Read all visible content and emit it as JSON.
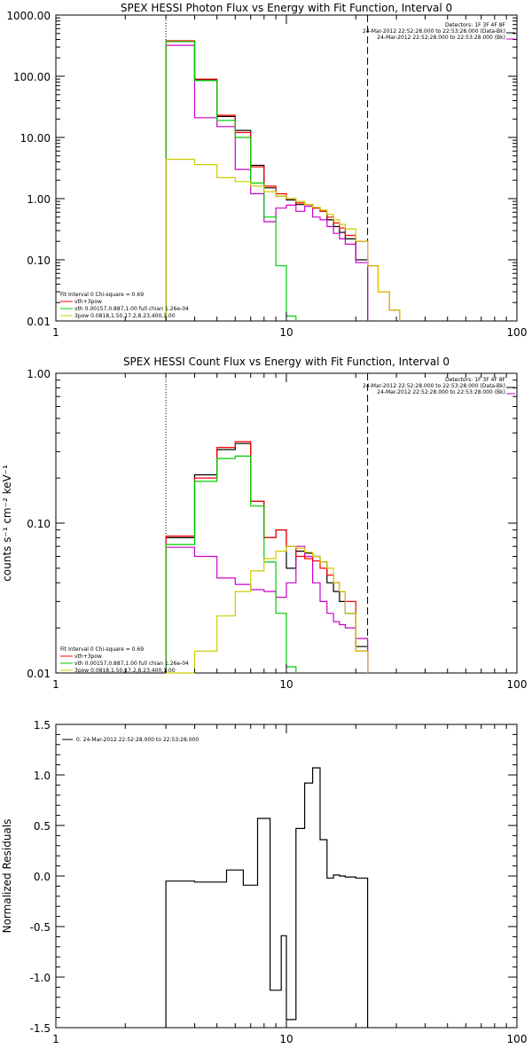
{
  "chart_data": [
    {
      "type": "line",
      "title": "SPEX HESSI Photon Flux vs Energy with Fit Function, Interval 0",
      "xscale": "log",
      "yscale": "log",
      "xlim": [
        1,
        100
      ],
      "ylim": [
        0.01,
        1000
      ],
      "x_ticks": [
        "1",
        "10",
        "100"
      ],
      "y_ticks": [
        "0.01",
        "0.10",
        "1.00",
        "10.00",
        "100.00",
        "1000.00"
      ],
      "ylabel": "",
      "info_lines": [
        "Detectors: 1F 3F 4F 8F",
        "24-Mar-2012 22:52:28.000 to 22:53:28.000 (Data-Bk)",
        "24-Mar-2012 22:52:28.000 to 22:53:28.000 (Bk)"
      ],
      "fit_lines": [
        "Fit Interval 0   Chi-square = 0.69",
        "vth+3pow",
        "vth 0.00157,0.887,1.00  full chian 1.26e-04",
        "3pow 0.0818,1.50,17.2,8.23,400,1.00"
      ],
      "vlines": [
        3.0,
        22.5
      ],
      "bin_edges": [
        3,
        4,
        5,
        6,
        7,
        8,
        9,
        10,
        11,
        12,
        13,
        14,
        15,
        16,
        17,
        18,
        20,
        22.5,
        25,
        28,
        31
      ],
      "series": [
        {
          "name": "Data-Bk",
          "color": "#000000",
          "values": [
            370,
            88,
            22,
            13,
            3.5,
            1.5,
            1.1,
            0.95,
            0.8,
            0.8,
            0.7,
            0.62,
            0.45,
            0.35,
            0.28,
            0.22,
            0.1,
            null,
            null,
            null
          ]
        },
        {
          "name": "Bk",
          "color": "#cc00cc",
          "values": [
            320,
            21,
            15,
            3.0,
            1.2,
            0.42,
            0.7,
            0.78,
            0.62,
            0.75,
            0.5,
            0.45,
            0.35,
            0.27,
            0.22,
            0.18,
            0.09,
            null,
            null,
            null
          ]
        },
        {
          "name": "vth+3pow",
          "color": "#ff0000",
          "values": [
            380,
            90,
            23,
            12,
            3.3,
            1.6,
            1.2,
            1.0,
            0.85,
            0.8,
            0.7,
            0.62,
            0.5,
            0.4,
            0.33,
            0.25,
            0.2,
            0.08,
            0.03,
            0.015
          ]
        },
        {
          "name": "vth",
          "color": "#00cc00",
          "values": [
            370,
            85,
            19,
            10,
            1.8,
            0.5,
            0.08,
            0.012,
            null,
            null,
            null,
            null,
            null,
            null,
            null,
            null,
            null,
            null,
            null,
            null
          ]
        },
        {
          "name": "3pow",
          "color": "#cccc00",
          "values": [
            4.4,
            3.6,
            2.2,
            1.9,
            1.6,
            1.3,
            1.1,
            1.0,
            0.9,
            0.8,
            0.72,
            0.65,
            0.55,
            0.45,
            0.38,
            0.32,
            0.2,
            0.08,
            0.03,
            0.015
          ]
        }
      ]
    },
    {
      "type": "line",
      "title": "SPEX HESSI Count Flux vs Energy with Fit Function, Interval 0",
      "xscale": "log",
      "yscale": "log",
      "xlim": [
        1,
        100
      ],
      "ylim": [
        0.01,
        1.0
      ],
      "x_ticks": [
        "1",
        "10",
        "100"
      ],
      "y_ticks": [
        "0.01",
        "0.10",
        "1.00"
      ],
      "ylabel": "counts s⁻¹ cm⁻² keV⁻¹",
      "info_lines": [
        "Detectors: 1F 3F 4F 8F",
        "24-Mar-2012 22:52:28.000 to 22:53:28.000 (Data-Bk)",
        "24-Mar-2012 22:52:28.000 to 22:53:28.000 (Bk)"
      ],
      "fit_lines": [
        "Fit Interval 0   Chi-square = 0.69",
        "vth+3pow",
        "vth 0.00157,0.887,1.00  full chian 1.26e-04",
        "3pow 0.0818,1.50,17.2,8.23,400,1.00"
      ],
      "vlines": [
        3.0,
        22.5
      ],
      "bin_edges": [
        3,
        4,
        5,
        6,
        7,
        8,
        9,
        10,
        11,
        12,
        13,
        14,
        15,
        16,
        17,
        18,
        20,
        22.5
      ],
      "series": [
        {
          "name": "Data-Bk",
          "color": "#000000",
          "values": [
            0.08,
            0.21,
            0.31,
            0.34,
            0.14,
            0.08,
            0.09,
            0.05,
            0.065,
            0.063,
            0.06,
            0.055,
            0.04,
            0.035,
            0.03,
            0.025,
            0.015
          ]
        },
        {
          "name": "Bk",
          "color": "#cc00cc",
          "values": [
            0.069,
            0.06,
            0.043,
            0.039,
            0.036,
            0.035,
            0.032,
            0.04,
            0.07,
            0.06,
            0.04,
            0.03,
            0.025,
            0.022,
            0.021,
            0.02,
            0.017
          ]
        },
        {
          "name": "vth+3pow",
          "color": "#ff0000",
          "values": [
            0.082,
            0.2,
            0.32,
            0.35,
            0.14,
            0.08,
            0.09,
            0.07,
            0.06,
            0.058,
            0.056,
            0.05,
            0.045,
            0.04,
            0.035,
            0.03,
            0.014
          ]
        },
        {
          "name": "vth",
          "color": "#00cc00",
          "values": [
            0.072,
            0.19,
            0.27,
            0.28,
            0.13,
            0.055,
            0.025,
            0.011,
            null,
            null,
            null,
            null,
            null,
            null,
            null,
            null,
            null
          ]
        },
        {
          "name": "3pow",
          "color": "#cccc00",
          "values": [
            0.01,
            0.014,
            0.024,
            0.035,
            0.048,
            0.058,
            0.065,
            0.07,
            0.068,
            0.064,
            0.06,
            0.055,
            0.05,
            0.04,
            0.035,
            0.025,
            0.014
          ]
        }
      ]
    },
    {
      "type": "line",
      "title": "",
      "xscale": "log",
      "yscale": "linear",
      "xlim": [
        1,
        100
      ],
      "ylim": [
        -1.5,
        1.5
      ],
      "x_ticks": [
        "1",
        "10",
        "100"
      ],
      "y_ticks": [
        "-1.5",
        "-1.0",
        "-0.5",
        "0.0",
        "0.5",
        "1.0",
        "1.5"
      ],
      "ylabel": "Normalized Residuals",
      "legend": "0. 24-Mar-2012 22:52:28.000 to 22:53:28.000",
      "bin_edges": [
        3,
        4,
        5,
        5.5,
        6,
        6.5,
        7,
        7.5,
        8,
        8.5,
        9,
        9.5,
        10,
        11,
        12,
        13,
        14,
        15,
        16,
        17,
        18,
        20,
        22.5
      ],
      "series": [
        {
          "name": "residuals",
          "color": "#000000",
          "values": [
            -0.05,
            -0.06,
            -0.06,
            0.06,
            0.06,
            -0.09,
            -0.09,
            0.57,
            0.57,
            -1.13,
            -1.13,
            -0.59,
            -1.42,
            0.47,
            0.92,
            1.07,
            0.36,
            -0.02,
            0.01,
            0.0,
            -0.01,
            -0.02
          ]
        }
      ]
    }
  ]
}
